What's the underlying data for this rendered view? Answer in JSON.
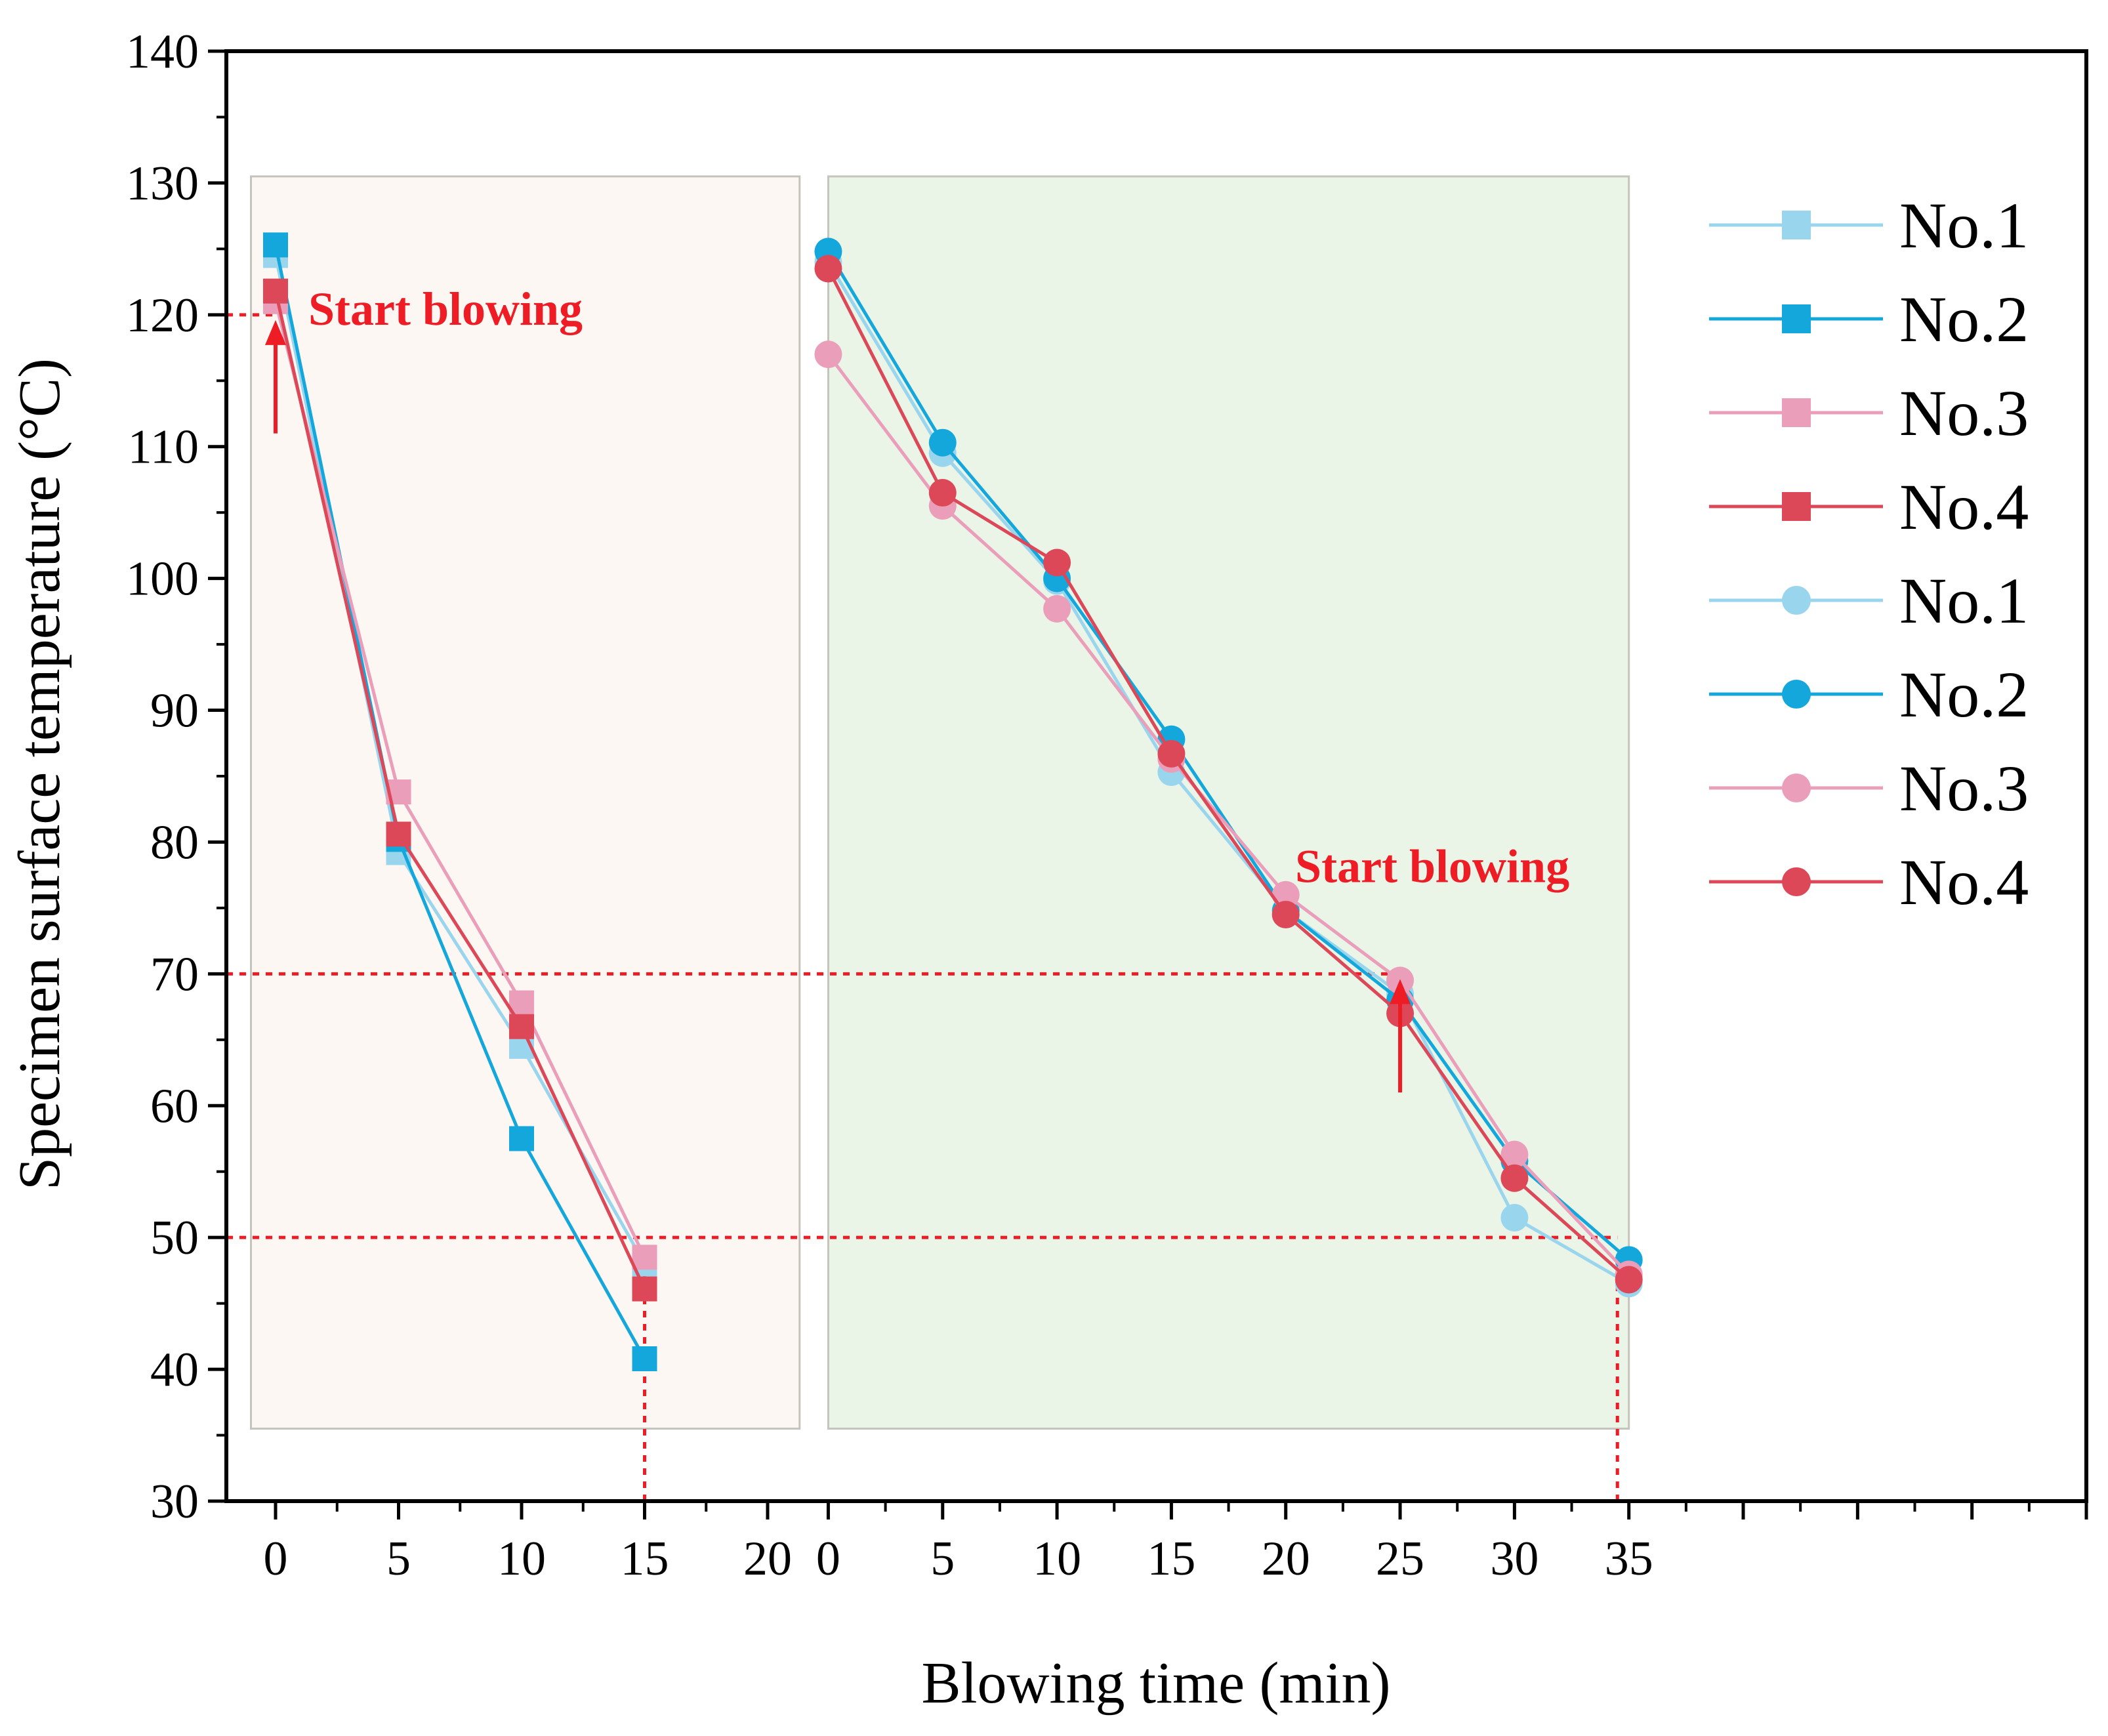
{
  "chart_data": {
    "type": "line",
    "xlabel": "Blowing time (min)",
    "ylabel": "Specimen surface temperature (°C)",
    "ylim": [
      30,
      140
    ],
    "yticks": [
      30,
      40,
      50,
      60,
      70,
      80,
      90,
      100,
      110,
      120,
      130,
      140
    ],
    "panels": [
      {
        "name": "square-markers",
        "xlim": [
          -2,
          22
        ],
        "xticks": [
          0,
          5,
          10,
          15,
          20
        ],
        "region": [
          -1,
          21.3
        ],
        "region_color": "#fdf7f3"
      },
      {
        "name": "circle-markers",
        "xlim": [
          -0.5,
          55
        ],
        "xticks": [
          0,
          5,
          10,
          15,
          20,
          25,
          30,
          35
        ],
        "region": [
          0,
          35
        ],
        "region_color": "#eaf4e7"
      }
    ],
    "series": [
      {
        "name": "No.1",
        "panel": 0,
        "marker": "square",
        "color": "#9ad5ee",
        "x": [
          0,
          5,
          10,
          15
        ],
        "y": [
          124.5,
          79.2,
          64.5,
          48.0
        ]
      },
      {
        "name": "No.2",
        "panel": 0,
        "marker": "square",
        "color": "#13a7dc",
        "x": [
          0,
          5,
          10,
          15
        ],
        "y": [
          125.3,
          80.2,
          57.5,
          40.8
        ]
      },
      {
        "name": "No.3",
        "panel": 0,
        "marker": "square",
        "color": "#ea9eba",
        "x": [
          0,
          5,
          10,
          15
        ],
        "y": [
          121.0,
          83.8,
          67.8,
          48.5
        ]
      },
      {
        "name": "No.4",
        "panel": 0,
        "marker": "square",
        "color": "#dc4858",
        "x": [
          0,
          5,
          10,
          15
        ],
        "y": [
          121.8,
          80.6,
          66.0,
          46.1
        ]
      },
      {
        "name": "No.1",
        "panel": 1,
        "marker": "circle",
        "color": "#9ad5ee",
        "x": [
          0,
          5,
          10,
          15,
          20,
          25,
          30,
          35
        ],
        "y": [
          124.0,
          109.5,
          99.8,
          85.3,
          74.8,
          68.5,
          51.5,
          46.5
        ]
      },
      {
        "name": "No.2",
        "panel": 1,
        "marker": "circle",
        "color": "#13a7dc",
        "x": [
          0,
          5,
          10,
          15,
          20,
          25,
          30,
          35
        ],
        "y": [
          124.8,
          110.3,
          100.0,
          87.8,
          74.8,
          68.0,
          55.8,
          48.3
        ]
      },
      {
        "name": "No.3",
        "panel": 1,
        "marker": "circle",
        "color": "#ea9eba",
        "x": [
          0,
          5,
          10,
          15,
          20,
          25,
          30,
          35
        ],
        "y": [
          117.0,
          105.5,
          97.7,
          86.3,
          76.0,
          69.5,
          56.3,
          47.2
        ]
      },
      {
        "name": "No.4",
        "panel": 1,
        "marker": "circle",
        "color": "#dc4858",
        "x": [
          0,
          5,
          10,
          15,
          20,
          25,
          30,
          35
        ],
        "y": [
          123.5,
          106.5,
          101.2,
          86.7,
          74.5,
          67.0,
          54.5,
          46.8
        ]
      }
    ],
    "reference_lines": [
      {
        "kind": "h",
        "y": 120,
        "x_range": [
          -2,
          0
        ]
      },
      {
        "kind": "h",
        "y": 70,
        "x_range": [
          -2,
          25
        ],
        "x_range_panel": [
          0,
          1
        ]
      },
      {
        "kind": "h",
        "y": 50,
        "x_range": [
          -2,
          34.5
        ],
        "x_range_panel": [
          0,
          1
        ]
      },
      {
        "kind": "v",
        "panel": 0,
        "x": 15,
        "y_range": [
          30,
          48
        ]
      },
      {
        "kind": "v",
        "panel": 1,
        "x": 34.5,
        "y_range": [
          30,
          48
        ]
      }
    ],
    "annotations": [
      {
        "text": "Start blowing",
        "panel": 0,
        "x": 0,
        "y": 120,
        "arrow_from_y": 111
      },
      {
        "text": "Start blowing",
        "panel": 1,
        "x": 25,
        "y": 70,
        "arrow_from_y": 61
      }
    ],
    "annotation_color": "#ee1c25",
    "legend_position": "right"
  }
}
